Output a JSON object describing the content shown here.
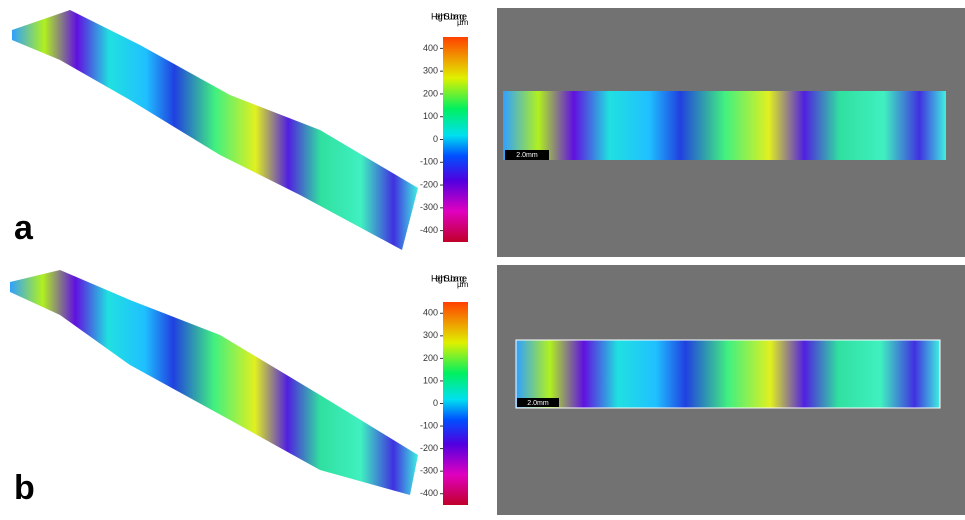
{
  "panels": [
    {
      "label": "a",
      "colorbar": {
        "title": "Height Subrange",
        "unit": "µm",
        "lim": [
          -450,
          450
        ],
        "ticks": [
          400,
          300,
          200,
          100,
          0,
          -100,
          -200,
          -300,
          -400
        ]
      },
      "scale_bar": "2.0mm"
    },
    {
      "label": "b",
      "colorbar": {
        "title": "Height Subrange",
        "unit": "µm",
        "lim": [
          -450,
          450
        ],
        "ticks": [
          400,
          300,
          200,
          100,
          0,
          -100,
          -200,
          -300,
          -400
        ]
      },
      "scale_bar": "2.0mm"
    }
  ]
}
